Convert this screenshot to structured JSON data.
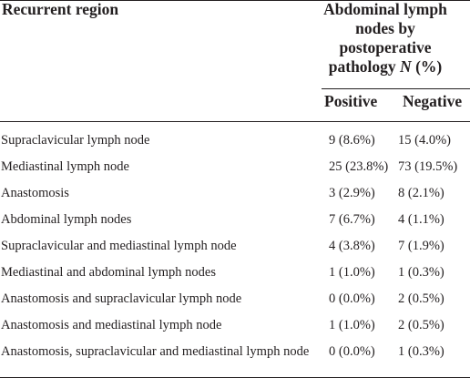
{
  "header": {
    "region": "Recurrent region",
    "group_lines": [
      "Abdominal lymph",
      "nodes by",
      "postoperative",
      "pathology"
    ],
    "group_n": "N",
    "group_pct": "(%)",
    "positive": "Positive",
    "negative": "Negative"
  },
  "rows": [
    {
      "label": "Supraclavicular lymph node",
      "positive": "9 (8.6%)",
      "negative": "15 (4.0%)"
    },
    {
      "label": "Mediastinal lymph node",
      "positive": "25 (23.8%)",
      "negative": "73 (19.5%)"
    },
    {
      "label": "Anastomosis",
      "positive": "3 (2.9%)",
      "negative": "8 (2.1%)"
    },
    {
      "label": "Abdominal lymph nodes",
      "positive": "7 (6.7%)",
      "negative": "4 (1.1%)"
    },
    {
      "label": "Supraclavicular and mediastinal lymph node",
      "positive": "4 (3.8%)",
      "negative": "7 (1.9%)"
    },
    {
      "label": "Mediastinal and abdominal lymph nodes",
      "positive": "1 (1.0%)",
      "negative": "1 (0.3%)"
    },
    {
      "label": "Anastomosis and supraclavicular lymph node",
      "positive": "0 (0.0%)",
      "negative": "2 (0.5%)"
    },
    {
      "label": "Anastomosis and mediastinal lymph node",
      "positive": "1 (1.0%)",
      "negative": "2 (0.5%)"
    },
    {
      "label": "Anastomosis, supraclavicular and mediastinal lymph node",
      "positive": "0 (0.0%)",
      "negative": "1 (0.3%)"
    }
  ]
}
